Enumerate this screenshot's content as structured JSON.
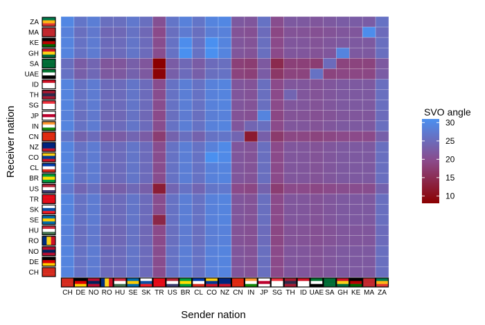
{
  "chart_data": {
    "type": "heatmap",
    "xlabel": "Sender nation",
    "ylabel": "Receiver nation",
    "x_categories": [
      "CH",
      "DE",
      "NO",
      "RO",
      "HU",
      "SE",
      "SK",
      "TR",
      "US",
      "BR",
      "CL",
      "CO",
      "NZ",
      "CN",
      "IN",
      "JP",
      "SG",
      "TH",
      "ID",
      "UAE",
      "SA",
      "GH",
      "KE",
      "MA",
      "ZA"
    ],
    "y_categories_top_to_bottom": [
      "ZA",
      "MA",
      "KE",
      "GH",
      "SA",
      "UAE",
      "ID",
      "TH",
      "SG",
      "JP",
      "IN",
      "CN",
      "NZ",
      "CO",
      "CL",
      "BR",
      "US",
      "TR",
      "SK",
      "SE",
      "HU",
      "RO",
      "NO",
      "DE",
      "CH"
    ],
    "legend": {
      "title": "SVO angle",
      "ticks": [
        10,
        15,
        20,
        25,
        30
      ],
      "range": [
        8,
        31
      ],
      "colors": {
        "low": "#8b0000",
        "mid": "#8b4a8a",
        "high": "#4a90f0"
      },
      "placement": "right"
    },
    "sender_base_values": [
      28.5,
      25.5,
      27.0,
      24.5,
      24.5,
      26.0,
      24.5,
      19.5,
      25.5,
      27.5,
      25.5,
      28.0,
      28.5,
      21.0,
      20.5,
      25.0,
      19.0,
      21.0,
      21.0,
      20.5,
      21.0,
      21.5,
      21.5,
      21.5,
      25.0
    ],
    "receiver_offsets_top_to_bottom": [
      1.0,
      0.0,
      0.5,
      0.5,
      -3.0,
      -2.5,
      0.5,
      0.5,
      0.5,
      0.0,
      0.5,
      -2.0,
      0.5,
      0.5,
      0.5,
      0.5,
      -1.5,
      0.5,
      0.5,
      0.5,
      0.0,
      0.0,
      0.5,
      0.5,
      0.5
    ],
    "cell_overrides": [
      {
        "receiver": "SA",
        "sender": "TR",
        "value": 8.0
      },
      {
        "receiver": "UAE",
        "sender": "TR",
        "value": 8.5
      },
      {
        "receiver": "US",
        "sender": "TR",
        "value": 12.5
      },
      {
        "receiver": "SE",
        "sender": "TR",
        "value": 14.0
      },
      {
        "receiver": "CN",
        "sender": "IN",
        "value": 12.0
      },
      {
        "receiver": "SA",
        "sender": "SG",
        "value": 14.5
      },
      {
        "receiver": "MA",
        "sender": "MA",
        "value": 30.5
      },
      {
        "receiver": "CO",
        "sender": "CO",
        "value": 31.0
      },
      {
        "receiver": "KE",
        "sender": "BR",
        "value": 30.5
      },
      {
        "receiver": "GH",
        "sender": "BR",
        "value": 31.0
      },
      {
        "receiver": "KE",
        "sender": "CO",
        "value": 31.0
      },
      {
        "receiver": "GH",
        "sender": "CO",
        "value": 31.0
      },
      {
        "receiver": "NZ",
        "sender": "NZ",
        "value": 30.0
      },
      {
        "receiver": "CO",
        "sender": "NZ",
        "value": 30.0
      },
      {
        "receiver": "CL",
        "sender": "NZ",
        "value": 29.0
      },
      {
        "receiver": "GH",
        "sender": "GH",
        "value": 29.0
      },
      {
        "receiver": "UAE",
        "sender": "UAE",
        "value": 26.0
      },
      {
        "receiver": "SA",
        "sender": "SA",
        "value": 25.0
      },
      {
        "receiver": "JP",
        "sender": "JP",
        "value": 29.0
      },
      {
        "receiver": "IN",
        "sender": "IN",
        "value": 24.0
      },
      {
        "receiver": "TH",
        "sender": "TH",
        "value": 24.0
      },
      {
        "receiver": "CN",
        "sender": "CN",
        "value": 24.0
      }
    ]
  }
}
